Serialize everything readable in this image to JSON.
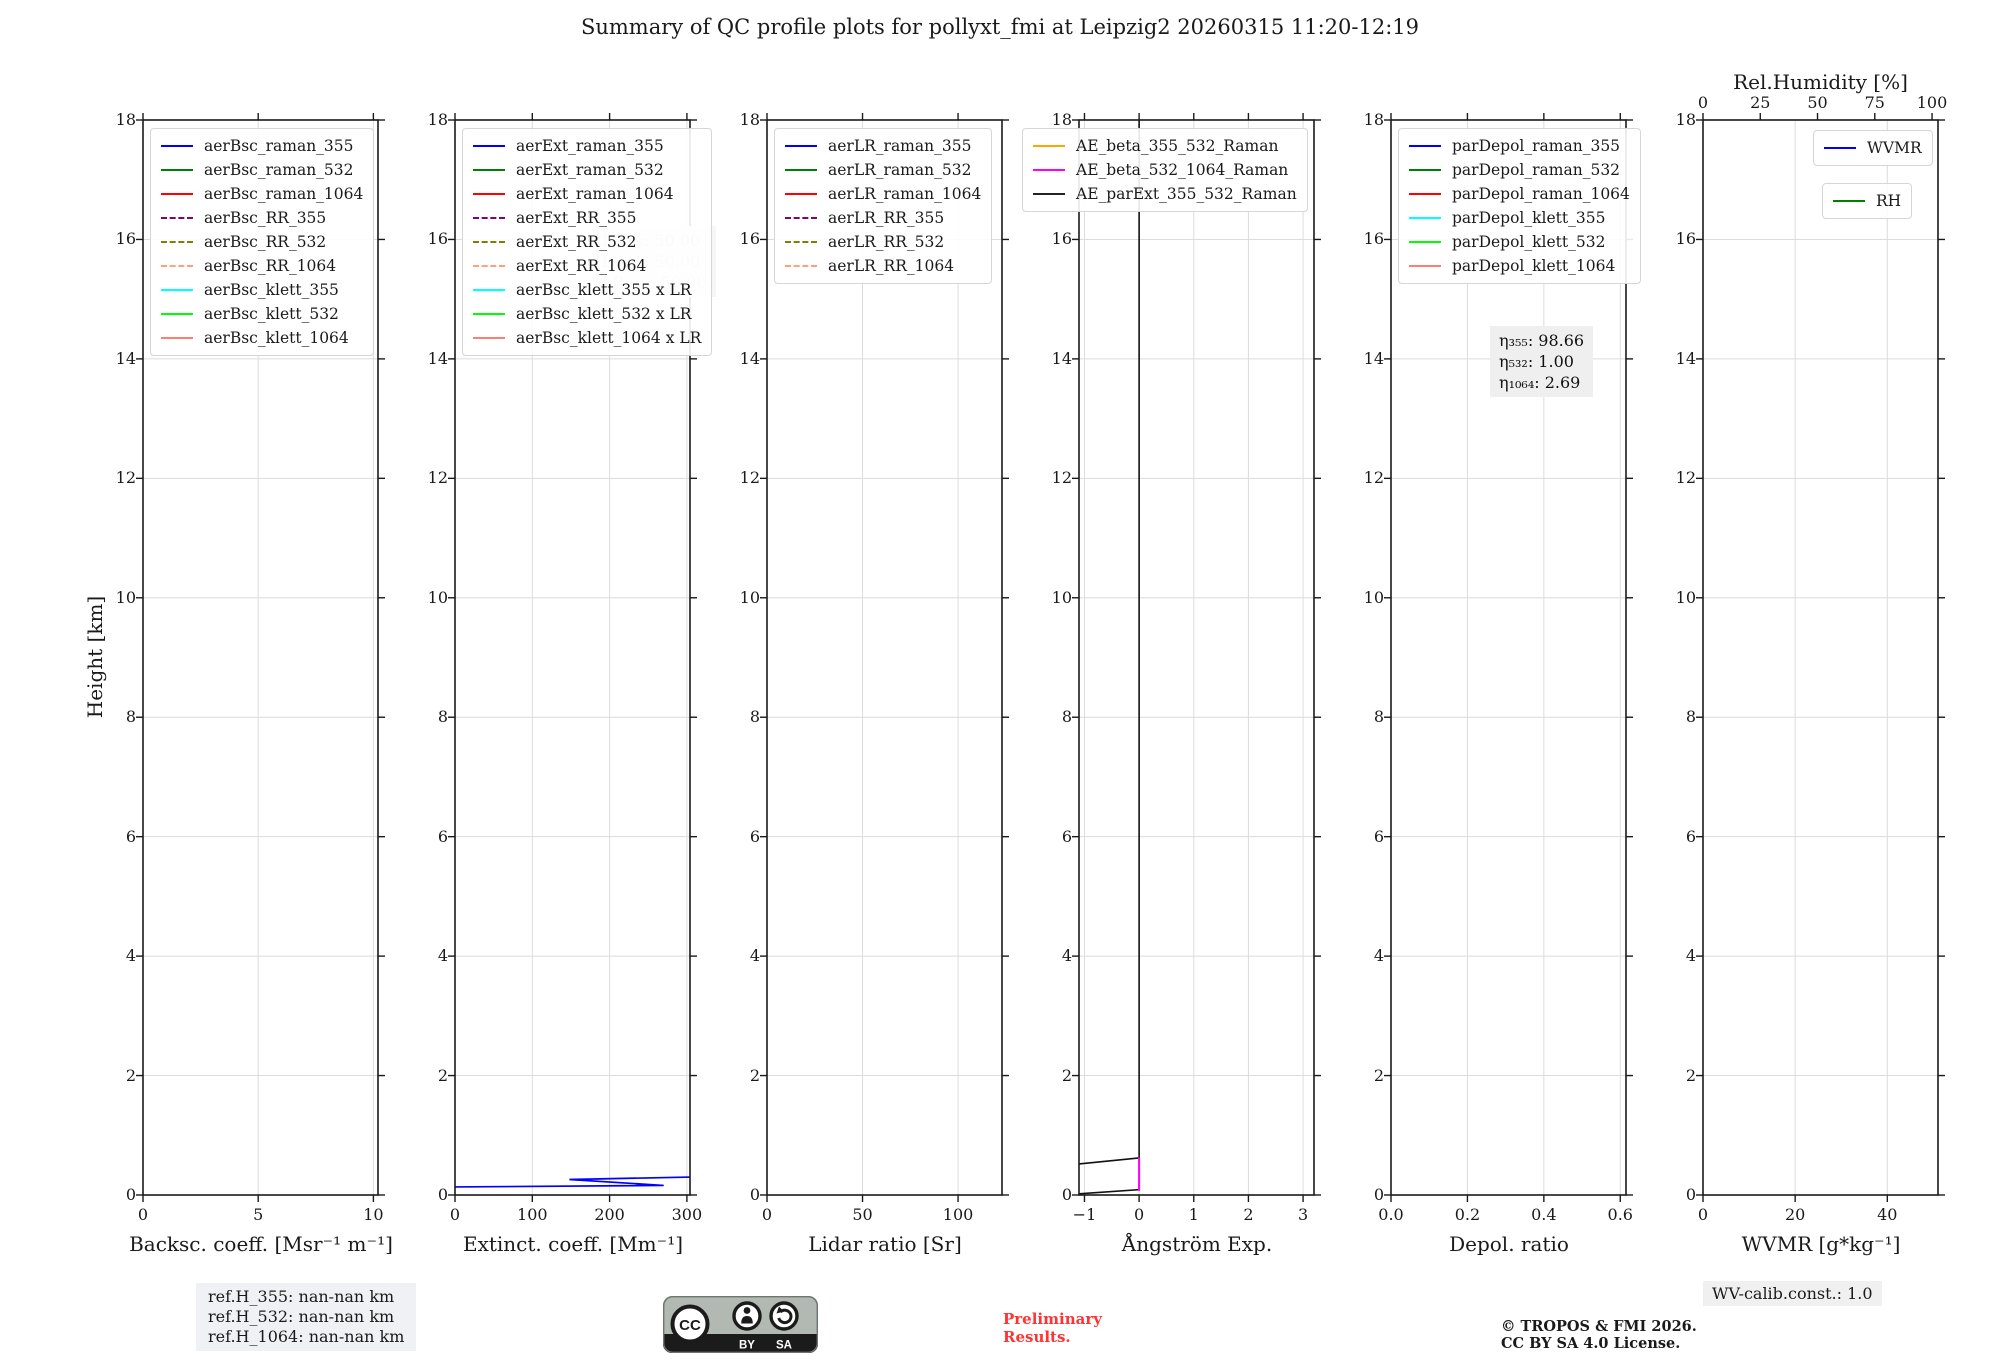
{
  "title": "Summary of QC profile plots for pollyxt_fmi at Leipzig2 20260315 11:20-12:19",
  "yaxis": {
    "label": "Height [km]",
    "lim": [
      0,
      18
    ],
    "tick_step": 2,
    "grid": true
  },
  "chart_data": [
    {
      "type": "line",
      "id": "backscatter",
      "xlabel": "Backsc. coeff. [Msr⁻¹ m⁻¹]",
      "xlim": [
        0,
        10.2
      ],
      "xticks": [
        {
          "v": 0,
          "t": "0"
        },
        {
          "v": 5,
          "t": "5"
        },
        {
          "v": 10,
          "t": "10"
        }
      ],
      "legends": [
        {
          "x": 7,
          "y": 8,
          "items": [
            {
              "label": "aerBsc_raman_355",
              "color": "#0000ff",
              "dash": "solid"
            },
            {
              "label": "aerBsc_raman_532",
              "color": "#008000",
              "dash": "solid"
            },
            {
              "label": "aerBsc_raman_1064",
              "color": "#ff0000",
              "dash": "solid"
            },
            {
              "label": "aerBsc_RR_355",
              "color": "#800080",
              "dash": "dashed"
            },
            {
              "label": "aerBsc_RR_532",
              "color": "#808000",
              "dash": "dashed"
            },
            {
              "label": "aerBsc_RR_1064",
              "color": "#ffa07a",
              "dash": "dashed"
            },
            {
              "label": "aerBsc_klett_355",
              "color": "#00ffff",
              "dash": "solid"
            },
            {
              "label": "aerBsc_klett_532",
              "color": "#00ff00",
              "dash": "solid"
            },
            {
              "label": "aerBsc_klett_1064",
              "color": "#fa8072",
              "dash": "solid"
            }
          ]
        }
      ],
      "annotations": [],
      "series": []
    },
    {
      "type": "line",
      "id": "extinction",
      "xlabel": "Extinct. coeff. [Mm⁻¹]",
      "xlim": [
        0,
        304
      ],
      "xticks": [
        {
          "v": 0,
          "t": "0"
        },
        {
          "v": 100,
          "t": "100"
        },
        {
          "v": 200,
          "t": "200"
        },
        {
          "v": 300,
          "t": "300"
        }
      ],
      "legends": [
        {
          "x": 7,
          "y": 8,
          "items": [
            {
              "label": "aerExt_raman_355",
              "color": "#0000ff",
              "dash": "solid"
            },
            {
              "label": "aerExt_raman_532",
              "color": "#008000",
              "dash": "solid"
            },
            {
              "label": "aerExt_raman_1064",
              "color": "#ff0000",
              "dash": "solid"
            },
            {
              "label": "aerExt_RR_355",
              "color": "#800080",
              "dash": "dashed"
            },
            {
              "label": "aerExt_RR_532",
              "color": "#808000",
              "dash": "dashed"
            },
            {
              "label": "aerExt_RR_1064",
              "color": "#ffa07a",
              "dash": "dashed"
            },
            {
              "label": "aerBsc_klett_355 x LR",
              "color": "#00ffff",
              "dash": "solid"
            },
            {
              "label": "aerBsc_klett_532 x LR",
              "color": "#00ff00",
              "dash": "solid"
            },
            {
              "label": "aerBsc_klett_1064 x LR",
              "color": "#fa8072",
              "dash": "solid"
            }
          ]
        }
      ],
      "annotations": [
        {
          "x": 138,
          "y": 106,
          "bg": "#f6f6f6",
          "color": "#c9c9c9",
          "lines": [
            "LR₃₅₅: 50.00",
            "LR₅₃₂: 50.00",
            "LR₁₀₆₄: 50.00"
          ]
        }
      ],
      "bands": [
        {
          "color": "#9aa0ff",
          "opacity": 0.3,
          "points": [
            [
              148,
              0.245
            ],
            [
              304,
              0.285
            ],
            [
              304,
              0.305
            ],
            [
              148,
              0.268
            ]
          ]
        }
      ],
      "series": [
        {
          "name": "aerExt_raman_355",
          "color": "#0000ff",
          "width": 1.7,
          "points": [
            [
              0,
              0.135
            ],
            [
              270,
              0.16
            ],
            [
              148,
              0.26
            ],
            [
              304,
              0.3
            ]
          ]
        }
      ]
    },
    {
      "type": "line",
      "id": "lidar-ratio",
      "xlabel": "Lidar ratio [Sr]",
      "xlim": [
        0,
        123
      ],
      "xticks": [
        {
          "v": 0,
          "t": "0"
        },
        {
          "v": 50,
          "t": "50"
        },
        {
          "v": 100,
          "t": "100"
        }
      ],
      "legends": [
        {
          "x": 7,
          "y": 8,
          "items": [
            {
              "label": "aerLR_raman_355",
              "color": "#0000ff",
              "dash": "solid"
            },
            {
              "label": "aerLR_raman_532",
              "color": "#008000",
              "dash": "solid"
            },
            {
              "label": "aerLR_raman_1064",
              "color": "#ff0000",
              "dash": "solid"
            },
            {
              "label": "aerLR_RR_355",
              "color": "#800080",
              "dash": "dashed"
            },
            {
              "label": "aerLR_RR_532",
              "color": "#808000",
              "dash": "dashed"
            },
            {
              "label": "aerLR_RR_1064",
              "color": "#ffa07a",
              "dash": "dashed"
            }
          ]
        }
      ],
      "annotations": [],
      "series": []
    },
    {
      "type": "line",
      "id": "angstrom",
      "xlabel": "Ångström Exp.",
      "xlim": [
        -1.1,
        3.2
      ],
      "xticks": [
        {
          "v": -1,
          "t": "−1"
        },
        {
          "v": 0,
          "t": "0"
        },
        {
          "v": 1,
          "t": "1"
        },
        {
          "v": 2,
          "t": "2"
        },
        {
          "v": 3,
          "t": "3"
        }
      ],
      "legends": [
        {
          "x": -57,
          "y": 8,
          "items": [
            {
              "label": "AE_beta_355_532_Raman",
              "color": "#ffa500",
              "dash": "solid"
            },
            {
              "label": "AE_beta_532_1064_Raman",
              "color": "#ff00ff",
              "dash": "solid"
            },
            {
              "label": "AE_parExt_355_532_Raman",
              "color": "#222222",
              "dash": "solid"
            }
          ]
        }
      ],
      "annotations": [],
      "series": [
        {
          "name": "AE_parExt_355_532_Raman",
          "color": "#111111",
          "width": 1.6,
          "points": [
            [
              -1.1,
              0.02
            ],
            [
              0,
              0.09
            ],
            [
              0,
              18
            ]
          ]
        },
        {
          "name": "AE_parExt_355_532_Raman_low",
          "color": "#111111",
          "width": 1.6,
          "points": [
            [
              -1.1,
              0.52
            ],
            [
              0,
              0.62
            ]
          ]
        },
        {
          "name": "AE_beta_532_1064_Raman",
          "color": "#ff00ff",
          "width": 2,
          "points": [
            [
              0,
              0.07
            ],
            [
              0,
              0.63
            ]
          ]
        }
      ]
    },
    {
      "type": "line",
      "id": "depol-ratio",
      "xlabel": "Depol. ratio",
      "xlim": [
        0,
        0.615
      ],
      "xticks": [
        {
          "v": 0,
          "t": "0.0"
        },
        {
          "v": 0.2,
          "t": "0.2"
        },
        {
          "v": 0.4,
          "t": "0.4"
        },
        {
          "v": 0.6,
          "t": "0.6"
        }
      ],
      "legends": [
        {
          "x": 7,
          "y": 8,
          "items": [
            {
              "label": "parDepol_raman_355",
              "color": "#0000ff",
              "dash": "solid"
            },
            {
              "label": "parDepol_raman_532",
              "color": "#008000",
              "dash": "solid"
            },
            {
              "label": "parDepol_raman_1064",
              "color": "#ff0000",
              "dash": "solid"
            },
            {
              "label": "parDepol_klett_355",
              "color": "#00ffff",
              "dash": "solid"
            },
            {
              "label": "parDepol_klett_532",
              "color": "#00ff00",
              "dash": "solid"
            },
            {
              "label": "parDepol_klett_1064",
              "color": "#fa8072",
              "dash": "solid"
            }
          ]
        }
      ],
      "annotations": [
        {
          "x": 99,
          "y": 206,
          "bg": "#efefef",
          "color": "#111111",
          "lines": [
            "η₃₅₅: 98.66",
            "η₅₃₂: 1.00",
            "η₁₀₆₄: 2.69"
          ]
        }
      ],
      "series": []
    },
    {
      "type": "line",
      "id": "wvmr",
      "xlabel": "WVMR [g*kg⁻¹]",
      "xlim": [
        0,
        51
      ],
      "xticks": [
        {
          "v": 0,
          "t": "0"
        },
        {
          "v": 20,
          "t": "20"
        },
        {
          "v": 40,
          "t": "40"
        }
      ],
      "top_axis": {
        "label": "Rel.Humidity [%]",
        "lim": [
          0,
          102.6
        ],
        "ticks": [
          {
            "v": 0,
            "t": "0"
          },
          {
            "v": 25,
            "t": "25"
          },
          {
            "v": 50,
            "t": "50"
          },
          {
            "v": 75,
            "t": "75"
          },
          {
            "v": 100,
            "t": "100"
          }
        ]
      },
      "legends": [
        {
          "x": 110,
          "y": 10,
          "items": [
            {
              "label": "WVMR",
              "color": "#0000ff",
              "dash": "solid"
            }
          ]
        },
        {
          "x": 119,
          "y": 63,
          "items": [
            {
              "label": "RH",
              "color": "#008000",
              "dash": "solid"
            }
          ]
        }
      ],
      "annotations": [],
      "series": []
    }
  ],
  "footer": {
    "ref_heights": [
      "ref.H_355: nan-nan km",
      "ref.H_532: nan-nan km",
      "ref.H_1064: nan-nan km"
    ],
    "preliminary": [
      "Preliminary",
      "Results."
    ],
    "copyright": [
      "© TROPOS & FMI 2026.",
      "CC BY SA 4.0 License."
    ],
    "wv_calib": "WV-calib.const.: 1.0",
    "cc_badge": {
      "cc": "CC",
      "by": "BY",
      "sa": "SA"
    }
  },
  "colors": {
    "grid": "#dcdcdc",
    "spine": "#1a1a1a",
    "preliminary_red": "#ff3333"
  }
}
